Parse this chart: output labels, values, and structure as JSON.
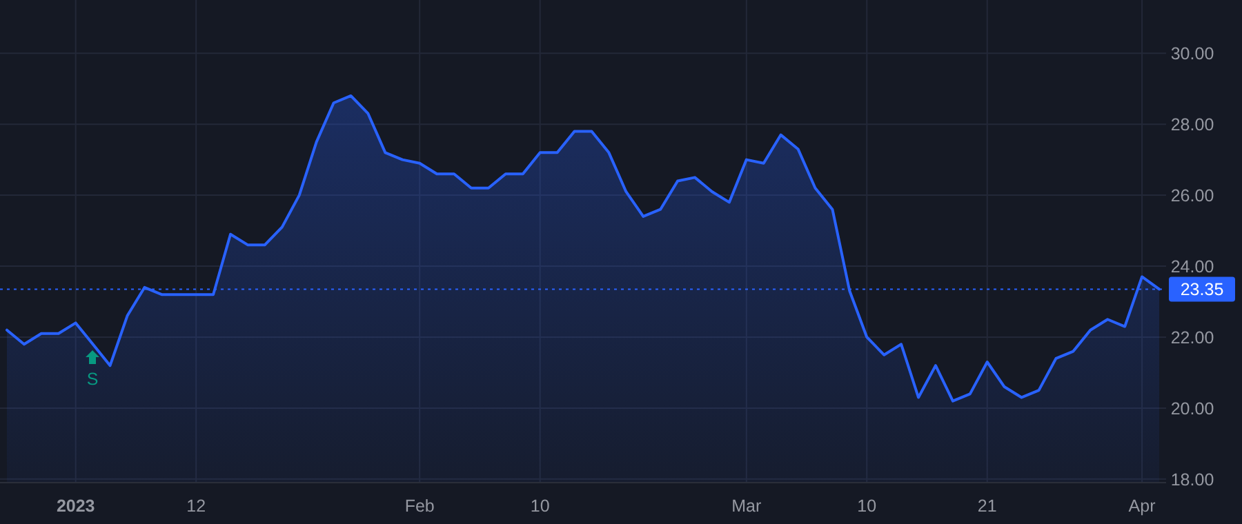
{
  "chart_data": {
    "type": "area",
    "categories": [
      null,
      null,
      null,
      null,
      "2023",
      null,
      null,
      null,
      null,
      null,
      null,
      "12",
      null,
      null,
      null,
      null,
      null,
      null,
      null,
      null,
      null,
      null,
      null,
      null,
      "Feb",
      null,
      null,
      null,
      null,
      null,
      null,
      "10",
      null,
      null,
      null,
      null,
      null,
      null,
      null,
      null,
      null,
      null,
      null,
      "Mar",
      null,
      null,
      null,
      null,
      null,
      null,
      "10",
      null,
      null,
      null,
      null,
      null,
      null,
      "21",
      null,
      null,
      null,
      null,
      null,
      null,
      null,
      null,
      "Apr",
      null
    ],
    "series": [
      {
        "color": "#2962ff",
        "values": [
          22.2,
          21.8,
          22.1,
          22.1,
          22.4,
          21.8,
          21.2,
          22.6,
          23.4,
          23.2,
          23.2,
          23.2,
          23.2,
          24.9,
          24.6,
          24.6,
          25.1,
          26.0,
          27.5,
          28.6,
          28.8,
          28.3,
          27.2,
          27.0,
          26.9,
          26.6,
          26.6,
          26.2,
          26.2,
          26.6,
          26.6,
          27.2,
          27.2,
          27.8,
          27.8,
          27.2,
          26.1,
          25.4,
          25.6,
          26.4,
          26.5,
          26.1,
          25.8,
          27.0,
          26.9,
          27.7,
          27.3,
          26.2,
          25.6,
          23.3,
          22.0,
          21.5,
          21.8,
          20.3,
          21.2,
          20.2,
          20.4,
          21.3,
          20.6,
          20.3,
          20.5,
          21.4,
          21.6,
          22.2,
          22.5,
          22.3,
          23.7,
          23.35
        ]
      }
    ],
    "ylim": [
      17.9,
      31.5
    ],
    "yticks": [
      {
        "value": 18,
        "label": "18.00"
      },
      {
        "value": 20,
        "label": "20.00"
      },
      {
        "value": 22,
        "label": "22.00"
      },
      {
        "value": 24,
        "label": "24.00"
      },
      {
        "value": 26,
        "label": "26.00"
      },
      {
        "value": 28,
        "label": "28.00"
      },
      {
        "value": 30,
        "label": "30.00"
      }
    ],
    "grid": true,
    "ref_lines": [
      {
        "axis": "y",
        "value": 23.35,
        "label": "23.35",
        "color": "#2962ff",
        "line_style": "dotted"
      }
    ],
    "annotations": [
      "S"
    ]
  }
}
